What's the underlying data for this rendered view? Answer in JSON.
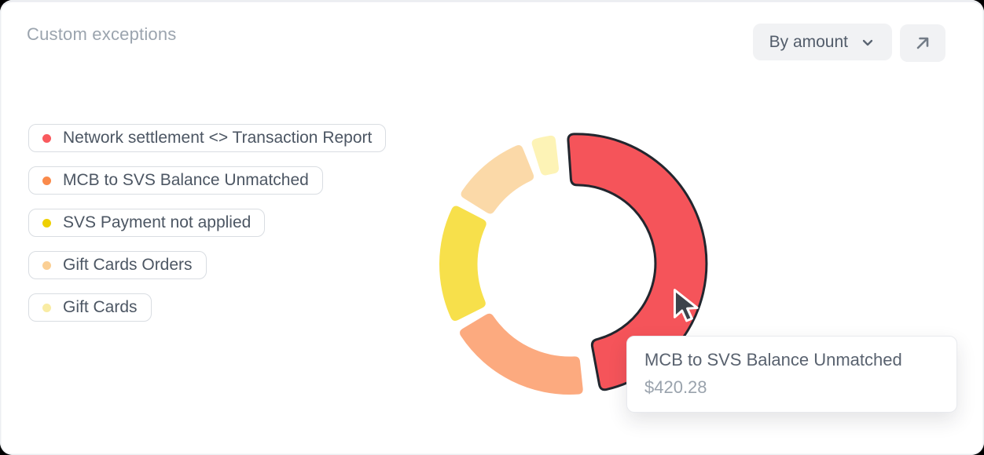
{
  "header": {
    "title": "Custom exceptions"
  },
  "controls": {
    "sort_dropdown": {
      "label": "By amount",
      "icon": "chevron-down-icon"
    },
    "expand_button": {
      "icon": "arrow-up-right-icon"
    }
  },
  "icons": {
    "dropdown_chevron": "chevron-down-icon",
    "expand": "arrow-up-right-icon",
    "cursor": "mouse-cursor-icon"
  },
  "colors": {
    "card_background": "#ffffff",
    "control_background": "#f1f2f4",
    "chip_border": "#d9dde2",
    "muted_text": "#9ba4ae",
    "body_text": "#4c5663",
    "highlight_stroke": "#22262e"
  },
  "chart_data": {
    "type": "donut",
    "title": "Custom exceptions",
    "sort_mode": "By amount",
    "legend_position": "left",
    "inner_radius_ratio": 0.71,
    "segments": [
      {
        "label": "Network settlement <> Transaction Report",
        "legend_color": "#f95a5e",
        "slice_color": "#f5545a",
        "start_deg": -4,
        "end_deg": 169.5,
        "percent_est": 51.0,
        "highlighted": true
      },
      {
        "label": "MCB to SVS Balance Unmatched",
        "legend_color": "#fa8a4b",
        "slice_color": "#fcaa7f",
        "start_deg": 174,
        "end_deg": 239,
        "percent_est": 19.2,
        "amount": "$420.28"
      },
      {
        "label": "SVS Payment not applied",
        "legend_color": "#eed002",
        "slice_color": "#f7e04b",
        "start_deg": 243.5,
        "end_deg": 297.5,
        "percent_est": 16.0
      },
      {
        "label": "Gift Cards Orders",
        "legend_color": "#fbcf94",
        "slice_color": "#fbd9a8",
        "start_deg": 302,
        "end_deg": 338,
        "percent_est": 10.6
      },
      {
        "label": "Gift Cards",
        "legend_color": "#f9eca4",
        "slice_color": "#fdf3b6",
        "start_deg": 342.5,
        "end_deg": 353.5,
        "percent_est": 3.2
      }
    ],
    "highlight_stroke": "#22262e",
    "tooltip": {
      "label": "MCB to SVS Balance Unmatched",
      "value": "$420.28"
    }
  }
}
